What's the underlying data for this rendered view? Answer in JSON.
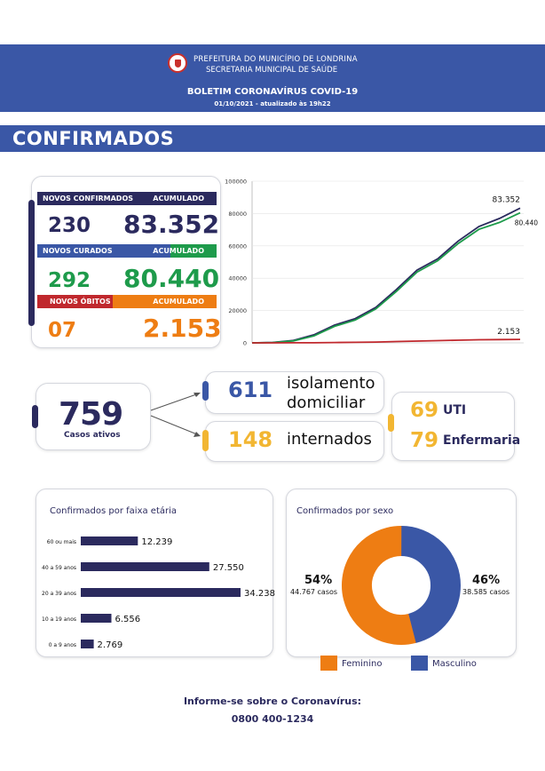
{
  "header": {
    "org_line1": "PREFEITURA DO MUNICÍPIO DE LONDRINA",
    "org_line2": "SECRETARIA MUNICIPAL DE SAÚDE",
    "title": "BOLETIM CORONAVÍRUS COVID-19",
    "date": "01/10/2021 - atualizado às 19h22"
  },
  "section_title": "CONFIRMADOS",
  "summary": {
    "confirmados": {
      "label": "NOVOS CONFIRMADOS",
      "accum_label": "ACUMULADO",
      "new": "230",
      "total": "83.352"
    },
    "curados": {
      "label": "NOVOS CURADOS",
      "accum_label": "ACUMULADO",
      "new": "292",
      "total": "80.440"
    },
    "obitos": {
      "label": "NOVOS ÓBITOS",
      "accum_label": "ACUMULADO",
      "new": "07",
      "total": "2.153"
    }
  },
  "colors": {
    "navy": "#2b2a5e",
    "blue": "#3a57a6",
    "green": "#1e9b4b",
    "orange": "#ee7d13",
    "red": "#c0282d",
    "yellow": "#f2b632"
  },
  "chart_data": {
    "type": "line",
    "ylim": [
      0,
      100000
    ],
    "yticks": [
      "100000",
      "80000",
      "60000",
      "40000",
      "20000",
      "0"
    ],
    "ytick_values": [
      100000,
      80000,
      60000,
      40000,
      20000,
      0
    ],
    "series": [
      {
        "name": "Confirmados",
        "color": "#2b2a5e",
        "values": [
          0,
          300,
          1500,
          5000,
          11000,
          15000,
          22000,
          33000,
          45000,
          52000,
          63000,
          72000,
          77000,
          83352
        ]
      },
      {
        "name": "Curados",
        "color": "#1e9b4b",
        "values": [
          0,
          200,
          1200,
          4300,
          10200,
          14100,
          21000,
          31800,
          43800,
          50800,
          61500,
          70200,
          74500,
          80440
        ]
      },
      {
        "name": "Óbitos",
        "color": "#c0282d",
        "values": [
          0,
          5,
          30,
          80,
          200,
          320,
          520,
          800,
          1100,
          1350,
          1650,
          1900,
          2050,
          2153
        ]
      }
    ],
    "end_labels": {
      "confirmados": "83.352",
      "curados": "80.440",
      "obitos": "2.153"
    }
  },
  "active": {
    "number": "759",
    "label": "Casos ativos",
    "isolamento": {
      "number": "611",
      "label_line1": "isolamento",
      "label_line2": "domiciliar"
    },
    "internados": {
      "number": "148",
      "label": "internados"
    },
    "uti": {
      "number": "69",
      "label": "UTI"
    },
    "enfermaria": {
      "number": "79",
      "label": "Enfermaria"
    }
  },
  "age_chart": {
    "title": "Confirmados por faixa etária",
    "max": 34238,
    "bars": [
      {
        "label": "60 ou mais",
        "value": 12239,
        "display": "12.239"
      },
      {
        "label": "40 a 59 anos",
        "value": 27550,
        "display": "27.550"
      },
      {
        "label": "20 a 39 anos",
        "value": 34238,
        "display": "34.238"
      },
      {
        "label": "10 a 19 anos",
        "value": 6556,
        "display": "6.556"
      },
      {
        "label": "0 a 9 anos",
        "value": 2769,
        "display": "2.769"
      }
    ]
  },
  "sex_chart": {
    "title": "Confirmados por sexo",
    "feminino": {
      "pct": "54%",
      "cases": "44.767 casos",
      "label": "Feminino",
      "share": 0.54
    },
    "masculino": {
      "pct": "46%",
      "cases": "38.585 casos",
      "label": "Masculino",
      "share": 0.46
    }
  },
  "footer": {
    "line1": "Informe-se sobre o Coronavírus:",
    "line2": "0800 400-1234"
  }
}
